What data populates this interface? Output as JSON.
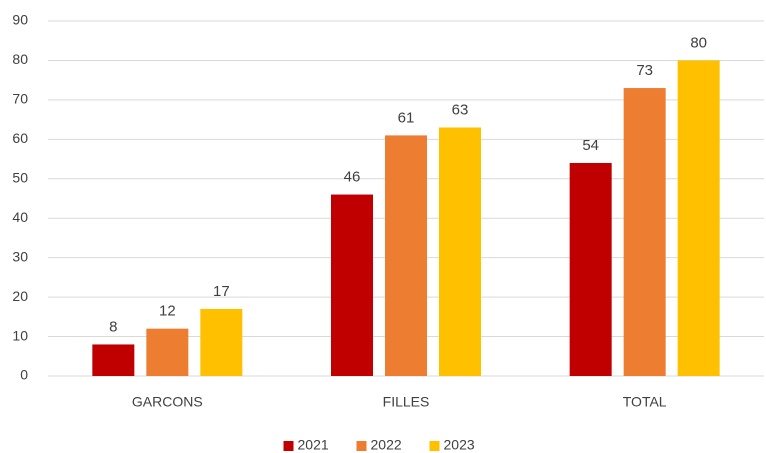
{
  "chart_data": {
    "type": "bar",
    "categories": [
      "GARCONS",
      "FILLES",
      "TOTAL"
    ],
    "series": [
      {
        "name": "2021",
        "color": "#c00000",
        "values": [
          8,
          46,
          54
        ]
      },
      {
        "name": "2022",
        "color": "#ed7d31",
        "values": [
          12,
          61,
          73
        ]
      },
      {
        "name": "2023",
        "color": "#ffc000",
        "values": [
          17,
          63,
          80
        ]
      }
    ],
    "ylim": [
      0,
      90
    ],
    "yticks": [
      0,
      10,
      20,
      30,
      40,
      50,
      60,
      70,
      80,
      90
    ],
    "grid": true,
    "legend": "bottom"
  }
}
